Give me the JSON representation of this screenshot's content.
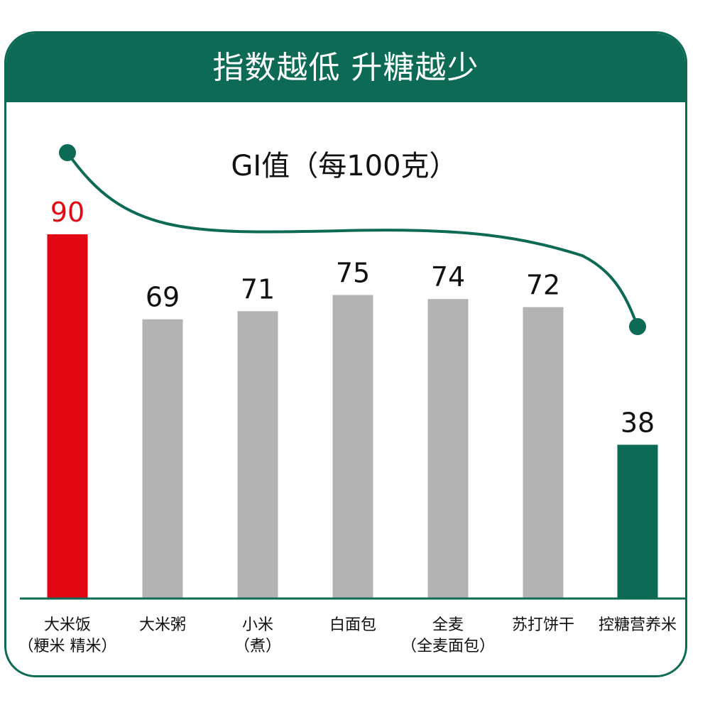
{
  "header": {
    "title": "指数越低 升糖越少"
  },
  "colors": {
    "brand": "#0d6b55",
    "highlight_high": "#e30613",
    "default_bar": "#b3b3b3",
    "highlight_low": "#0d6b55"
  },
  "chart_data": {
    "type": "bar",
    "title": "GI值（每100克）",
    "categories": [
      [
        "大米饭",
        "（粳米 精米）"
      ],
      [
        "大米粥"
      ],
      [
        "小米",
        "（煮）"
      ],
      [
        "白面包"
      ],
      [
        "全麦",
        "（全麦面包）"
      ],
      [
        "苏打饼干"
      ],
      [
        "控糖营养米"
      ]
    ],
    "values": [
      90,
      69,
      71,
      75,
      74,
      72,
      38
    ],
    "value_labels": [
      "90",
      "69",
      "71",
      "75",
      "74",
      "72",
      "38"
    ],
    "bar_colors": [
      "#e30613",
      "#b3b3b3",
      "#b3b3b3",
      "#b3b3b3",
      "#b3b3b3",
      "#b3b3b3",
      "#0d6b55"
    ],
    "value_label_colors": [
      "#e30613",
      "#111111",
      "#111111",
      "#111111",
      "#111111",
      "#111111",
      "#111111"
    ],
    "ylim": [
      0,
      100
    ],
    "xlabel": "",
    "ylabel": "",
    "grid": false,
    "legend": "none",
    "annotation": "decreasing-trend-curve"
  }
}
